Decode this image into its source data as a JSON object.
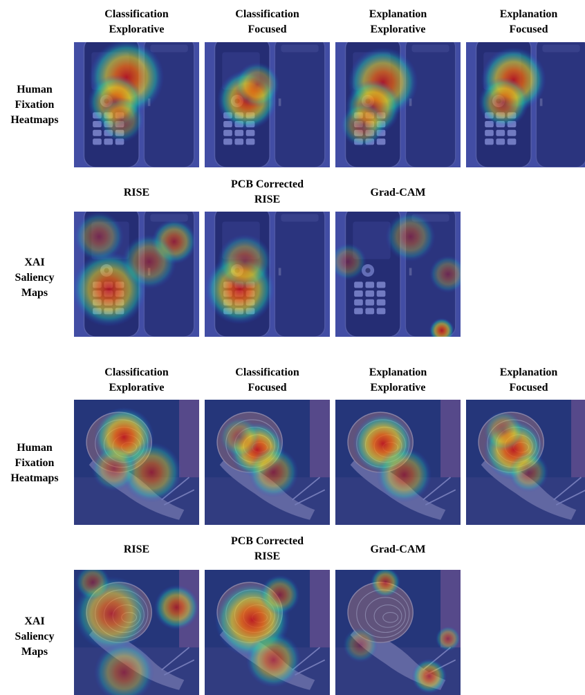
{
  "figure": {
    "panels": [
      {
        "subject": "phones",
        "rows": [
          {
            "row_label": "Human\nFixation\nHeatmaps",
            "columns": [
              {
                "title": "Classification\nExplorative",
                "heat": [
                  {
                    "cx": 42,
                    "cy": 28,
                    "r": 30,
                    "i": 0.95
                  },
                  {
                    "cx": 33,
                    "cy": 48,
                    "r": 22,
                    "i": 0.8
                  },
                  {
                    "cx": 38,
                    "cy": 62,
                    "r": 18,
                    "i": 0.5
                  }
                ]
              },
              {
                "title": "Classification\nFocused",
                "heat": [
                  {
                    "cx": 34,
                    "cy": 46,
                    "r": 24,
                    "i": 0.95
                  },
                  {
                    "cx": 42,
                    "cy": 34,
                    "r": 18,
                    "i": 0.6
                  }
                ]
              },
              {
                "title": "Explanation\nExplorative",
                "heat": [
                  {
                    "cx": 38,
                    "cy": 32,
                    "r": 28,
                    "i": 0.9
                  },
                  {
                    "cx": 30,
                    "cy": 52,
                    "r": 22,
                    "i": 0.8
                  },
                  {
                    "cx": 22,
                    "cy": 66,
                    "r": 18,
                    "i": 0.55
                  }
                ]
              },
              {
                "title": "Explanation\nFocused",
                "heat": [
                  {
                    "cx": 38,
                    "cy": 30,
                    "r": 26,
                    "i": 0.95
                  },
                  {
                    "cx": 30,
                    "cy": 48,
                    "r": 20,
                    "i": 0.75
                  }
                ]
              }
            ]
          },
          {
            "row_label": "XAI\nSaliency\nMaps",
            "columns": [
              {
                "title": "RISE",
                "heat": [
                  {
                    "cx": 28,
                    "cy": 62,
                    "r": 30,
                    "i": 0.9
                  },
                  {
                    "cx": 80,
                    "cy": 24,
                    "r": 18,
                    "i": 0.7
                  },
                  {
                    "cx": 60,
                    "cy": 40,
                    "r": 22,
                    "i": 0.55
                  },
                  {
                    "cx": 20,
                    "cy": 20,
                    "r": 20,
                    "i": 0.5
                  }
                ]
              },
              {
                "title": "PCB Corrected\nRISE",
                "heat": [
                  {
                    "cx": 28,
                    "cy": 62,
                    "r": 28,
                    "i": 0.95
                  },
                  {
                    "cx": 32,
                    "cy": 40,
                    "r": 22,
                    "i": 0.6
                  }
                ]
              },
              {
                "title": "Grad-CAM",
                "heat": [
                  {
                    "cx": 60,
                    "cy": 20,
                    "r": 20,
                    "i": 0.5
                  },
                  {
                    "cx": 90,
                    "cy": 50,
                    "r": 15,
                    "i": 0.45
                  },
                  {
                    "cx": 85,
                    "cy": 95,
                    "r": 10,
                    "i": 0.9
                  },
                  {
                    "cx": 10,
                    "cy": 40,
                    "r": 15,
                    "i": 0.4
                  }
                ]
              }
            ]
          }
        ]
      },
      {
        "subject": "snail",
        "rows": [
          {
            "row_label": "Human\nFixation\nHeatmaps",
            "columns": [
              {
                "title": "Classification\nExplorative",
                "heat": [
                  {
                    "cx": 40,
                    "cy": 30,
                    "r": 24,
                    "i": 0.95
                  },
                  {
                    "cx": 62,
                    "cy": 58,
                    "r": 24,
                    "i": 0.7
                  },
                  {
                    "cx": 32,
                    "cy": 55,
                    "r": 18,
                    "i": 0.5
                  }
                ]
              },
              {
                "title": "Classification\nFocused",
                "heat": [
                  {
                    "cx": 42,
                    "cy": 40,
                    "r": 22,
                    "i": 0.95
                  },
                  {
                    "cx": 55,
                    "cy": 58,
                    "r": 20,
                    "i": 0.6
                  },
                  {
                    "cx": 28,
                    "cy": 30,
                    "r": 16,
                    "i": 0.45
                  }
                ]
              },
              {
                "title": "Explanation\nExplorative",
                "heat": [
                  {
                    "cx": 38,
                    "cy": 35,
                    "r": 24,
                    "i": 0.95
                  },
                  {
                    "cx": 55,
                    "cy": 60,
                    "r": 22,
                    "i": 0.65
                  }
                ]
              },
              {
                "title": "Explanation\nFocused",
                "heat": [
                  {
                    "cx": 38,
                    "cy": 40,
                    "r": 24,
                    "i": 0.95
                  },
                  {
                    "cx": 30,
                    "cy": 25,
                    "r": 16,
                    "i": 0.5
                  },
                  {
                    "cx": 50,
                    "cy": 58,
                    "r": 16,
                    "i": 0.5
                  }
                ]
              }
            ]
          },
          {
            "row_label": "XAI\nSaliency\nMaps",
            "columns": [
              {
                "title": "RISE",
                "heat": [
                  {
                    "cx": 30,
                    "cy": 35,
                    "r": 30,
                    "i": 0.75
                  },
                  {
                    "cx": 82,
                    "cy": 30,
                    "r": 18,
                    "i": 0.8
                  },
                  {
                    "cx": 40,
                    "cy": 82,
                    "r": 24,
                    "i": 0.6
                  },
                  {
                    "cx": 15,
                    "cy": 10,
                    "r": 14,
                    "i": 0.5
                  }
                ]
              },
              {
                "title": "PCB Corrected\nRISE",
                "heat": [
                  {
                    "cx": 38,
                    "cy": 40,
                    "r": 30,
                    "i": 0.95
                  },
                  {
                    "cx": 55,
                    "cy": 72,
                    "r": 22,
                    "i": 0.7
                  },
                  {
                    "cx": 60,
                    "cy": 20,
                    "r": 16,
                    "i": 0.6
                  }
                ]
              },
              {
                "title": "Grad-CAM",
                "heat": [
                  {
                    "cx": 40,
                    "cy": 10,
                    "r": 12,
                    "i": 0.7
                  },
                  {
                    "cx": 75,
                    "cy": 85,
                    "r": 14,
                    "i": 0.75
                  },
                  {
                    "cx": 90,
                    "cy": 55,
                    "r": 10,
                    "i": 0.55
                  },
                  {
                    "cx": 20,
                    "cy": 60,
                    "r": 14,
                    "i": 0.4
                  }
                ]
              }
            ]
          }
        ]
      }
    ]
  }
}
